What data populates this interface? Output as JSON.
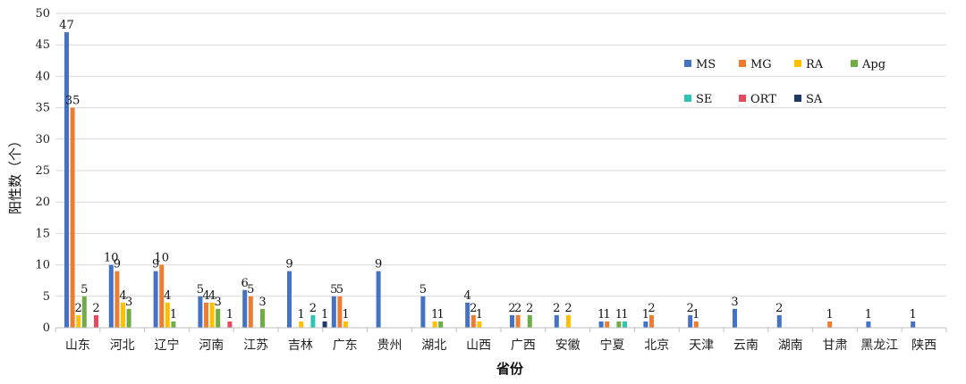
{
  "chart_data": {
    "type": "bar",
    "xlabel": "省份",
    "ylabel": "阳性数（个）",
    "ylim": [
      0,
      50
    ],
    "yticks": [
      0,
      5,
      10,
      15,
      20,
      25,
      30,
      35,
      40,
      45,
      50
    ],
    "grid": true,
    "legend_position": "top-right",
    "categories": [
      "山东",
      "河北",
      "辽宁",
      "河南",
      "江苏",
      "吉林",
      "广东",
      "贵州",
      "湖北",
      "山西",
      "广西",
      "安徽",
      "宁夏",
      "北京",
      "天津",
      "云南",
      "湖南",
      "甘肃",
      "黑龙江",
      "陕西"
    ],
    "series": [
      {
        "name": "MS",
        "color": "#4472C4",
        "values": [
          47,
          10,
          9,
          5,
          6,
          9,
          5,
          9,
          5,
          4,
          2,
          2,
          1,
          1,
          2,
          3,
          2,
          0,
          1,
          1
        ]
      },
      {
        "name": "MG",
        "color": "#ED7D31",
        "values": [
          35,
          9,
          10,
          4,
          5,
          0,
          5,
          0,
          0,
          2,
          2,
          0,
          1,
          2,
          1,
          0,
          0,
          1,
          0,
          0
        ]
      },
      {
        "name": "RA",
        "color": "#FFC000",
        "values": [
          2,
          4,
          4,
          4,
          0,
          1,
          1,
          0,
          1,
          1,
          0,
          2,
          0,
          0,
          0,
          0,
          0,
          0,
          0,
          0
        ]
      },
      {
        "name": "Apg",
        "color": "#70AD47",
        "values": [
          5,
          3,
          1,
          3,
          3,
          0,
          0,
          0,
          1,
          0,
          2,
          0,
          1,
          0,
          0,
          0,
          0,
          0,
          0,
          0
        ]
      },
      {
        "name": "SE",
        "color": "#2EC4B6",
        "values": [
          0,
          0,
          0,
          0,
          0,
          2,
          0,
          0,
          0,
          0,
          0,
          0,
          1,
          0,
          0,
          0,
          0,
          0,
          0,
          0
        ]
      },
      {
        "name": "ORT",
        "color": "#E84A5F",
        "values": [
          2,
          0,
          0,
          1,
          0,
          0,
          0,
          0,
          0,
          0,
          0,
          0,
          0,
          0,
          0,
          0,
          0,
          0,
          0,
          0
        ]
      },
      {
        "name": "SA",
        "color": "#1F3864",
        "values": [
          0,
          0,
          0,
          0,
          0,
          1,
          0,
          0,
          0,
          0,
          0,
          0,
          0,
          0,
          0,
          0,
          0,
          0,
          0,
          0
        ]
      }
    ]
  }
}
